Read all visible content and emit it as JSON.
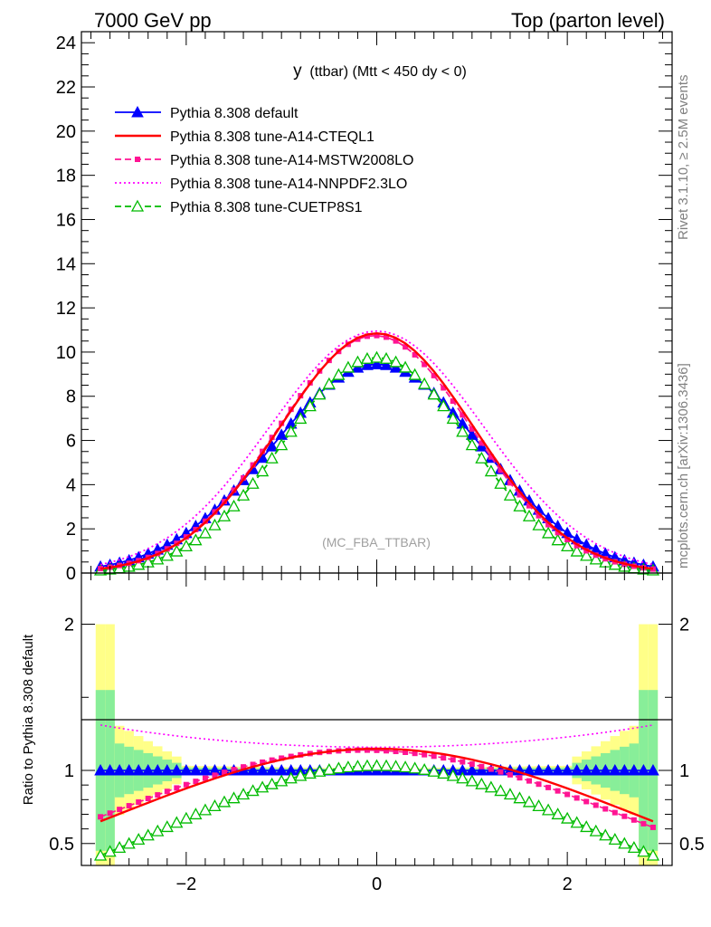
{
  "header": {
    "left": "7000 GeV pp",
    "right": "Top (parton level)"
  },
  "side_labels": {
    "rivet": "Rivet 3.1.10, ≥ 2.5M events",
    "mcplots": "mcplots.cern.ch [arXiv:1306.3436]"
  },
  "chart_data": [
    {
      "type": "line",
      "title": "y (ttbar) (Mtt < 450 dy < 0)",
      "title_main": "y",
      "title_rest": "(ttbar) (Mtt < 450 dy < 0)",
      "watermark": "(MC_FBA_TTBAR)",
      "xlim": [
        -3.1,
        3.1
      ],
      "ylim": [
        0,
        24.5
      ],
      "yticks": [
        0,
        2,
        4,
        6,
        8,
        10,
        12,
        14,
        16,
        18,
        20,
        22,
        24
      ],
      "ytick_labels": [
        "0",
        "2",
        "4",
        "6",
        "8",
        "10",
        "12",
        "14",
        "16",
        "18",
        "20",
        "22",
        "24"
      ],
      "grid": false,
      "legend_position": "top-left",
      "series": [
        {
          "name": "Pythia 8.308 default",
          "color": "#0000ff",
          "style": "solid",
          "marker": "filled-triangle",
          "sigma": 1.1,
          "peak": 9.45,
          "shift": 0.0
        },
        {
          "name": "Pythia 8.308 tune-A14-CTEQL1",
          "color": "#ff0000",
          "style": "solid",
          "marker": "none",
          "sigma": 1.02,
          "peak": 10.85,
          "shift": 0.0
        },
        {
          "name": "Pythia 8.308 tune-A14-MSTW2008LO",
          "color": "#ff1493",
          "style": "dashed",
          "marker": "square",
          "sigma": 1.02,
          "peak": 10.75,
          "shift": -0.02
        },
        {
          "name": "Pythia 8.308 tune-A14-NNPDF2.3LO",
          "color": "#ff00ff",
          "style": "dotted",
          "marker": "none",
          "sigma": 1.12,
          "peak": 10.95,
          "shift": 0.0
        },
        {
          "name": "Pythia 8.308 tune-CUETP8S1",
          "color": "#00bb00",
          "style": "dashed",
          "marker": "open-triangle",
          "sigma": 0.98,
          "peak": 9.75,
          "shift": 0.0
        }
      ]
    },
    {
      "type": "line",
      "ylabel": "Ratio to Pythia 8.308 default",
      "xlim": [
        -3.1,
        3.1
      ],
      "ylim": [
        0.35,
        2.35
      ],
      "xticks": [
        -2,
        0,
        2
      ],
      "xtick_labels": [
        "−2",
        "0",
        "2"
      ],
      "yticks": [
        0.5,
        1,
        2
      ],
      "ytick_labels": [
        "0.5",
        "1",
        "2"
      ],
      "reference_line": 1,
      "grid": false
    }
  ]
}
